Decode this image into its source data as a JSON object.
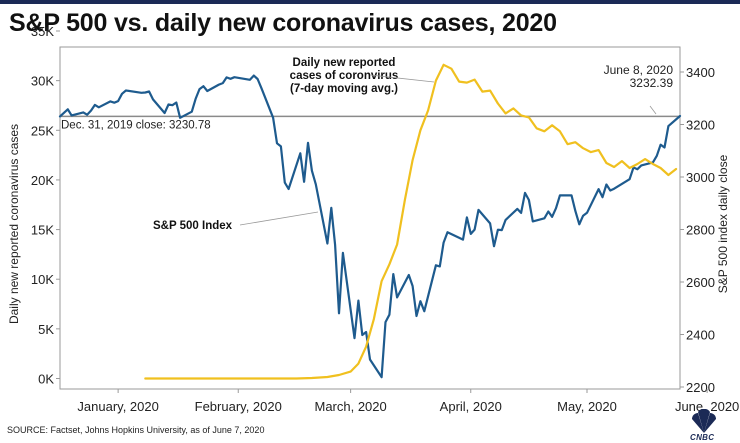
{
  "title": "S&P 500 vs. daily new coronavirus cases, 2020",
  "source": "SOURCE: Factset, Johns Hopkins University, as of June 7, 2020",
  "logo": {
    "text": "CNBC"
  },
  "colors": {
    "sp500": "#1e5b8e",
    "cases": "#f0c01f",
    "reference": "#8a8a8a",
    "axis": "#555555"
  },
  "chart_data": {
    "type": "line",
    "ylabel_left": "Daily new reported coronavirus cases",
    "ylabel_right": "S&P 500 index daily close",
    "ylim_left": [
      0,
      35000
    ],
    "ylim_right": [
      2200,
      3500
    ],
    "yticks_left": [
      {
        "value": 0,
        "label": "0K"
      },
      {
        "value": 5000,
        "label": "5K"
      },
      {
        "value": 10000,
        "label": "10K"
      },
      {
        "value": 15000,
        "label": "15K"
      },
      {
        "value": 20000,
        "label": "20K"
      },
      {
        "value": 25000,
        "label": "25K"
      },
      {
        "value": 30000,
        "label": "30K"
      },
      {
        "value": 35000,
        "label": "35K"
      }
    ],
    "yticks_right": [
      {
        "value": 2200,
        "label": "2200"
      },
      {
        "value": 2400,
        "label": "2400"
      },
      {
        "value": 2600,
        "label": "2600"
      },
      {
        "value": 2800,
        "label": "2800"
      },
      {
        "value": 3000,
        "label": "3000"
      },
      {
        "value": 3200,
        "label": "3200"
      },
      {
        "value": 3400,
        "label": "3400"
      }
    ],
    "x_axis_type": "date",
    "xlim": [
      "2019-12-31",
      "2020-06-08"
    ],
    "xticks": [
      {
        "date": "2020-01-15",
        "label": "January, 2020"
      },
      {
        "date": "2020-02-15",
        "label": "February, 2020"
      },
      {
        "date": "2020-03-15",
        "label": "March, 2020"
      },
      {
        "date": "2020-04-15",
        "label": "April, 2020"
      },
      {
        "date": "2020-05-15",
        "label": "May, 2020"
      },
      {
        "date": "2020-06-15",
        "label": "June, 2020"
      }
    ],
    "reference_line": {
      "axis": "right",
      "value": 3230.78,
      "label": "Dec. 31, 2019 close: 3230.78"
    },
    "annotations": [
      {
        "id": "cases",
        "lines": [
          "Daily new reported",
          "cases of coronvirus",
          "(7-day moving avg.)"
        ]
      },
      {
        "id": "sp500",
        "lines": [
          "S&P 500 Index"
        ]
      },
      {
        "id": "last-close",
        "lines": [
          "June 8, 2020",
          "3232.39"
        ]
      }
    ],
    "series": [
      {
        "name": "S&P 500 Index",
        "axis": "right",
        "color": "#1e5b8e",
        "x": [
          "2019-12-31",
          "2020-01-02",
          "2020-01-03",
          "2020-01-06",
          "2020-01-07",
          "2020-01-08",
          "2020-01-09",
          "2020-01-10",
          "2020-01-13",
          "2020-01-14",
          "2020-01-15",
          "2020-01-16",
          "2020-01-17",
          "2020-01-21",
          "2020-01-22",
          "2020-01-23",
          "2020-01-24",
          "2020-01-27",
          "2020-01-28",
          "2020-01-29",
          "2020-01-30",
          "2020-01-31",
          "2020-02-03",
          "2020-02-04",
          "2020-02-05",
          "2020-02-06",
          "2020-02-07",
          "2020-02-10",
          "2020-02-11",
          "2020-02-12",
          "2020-02-13",
          "2020-02-14",
          "2020-02-18",
          "2020-02-19",
          "2020-02-20",
          "2020-02-21",
          "2020-02-24",
          "2020-02-25",
          "2020-02-26",
          "2020-02-27",
          "2020-02-28",
          "2020-03-02",
          "2020-03-03",
          "2020-03-04",
          "2020-03-05",
          "2020-03-06",
          "2020-03-09",
          "2020-03-10",
          "2020-03-11",
          "2020-03-12",
          "2020-03-13",
          "2020-03-16",
          "2020-03-17",
          "2020-03-18",
          "2020-03-19",
          "2020-03-20",
          "2020-03-23",
          "2020-03-24",
          "2020-03-25",
          "2020-03-26",
          "2020-03-27",
          "2020-03-30",
          "2020-03-31",
          "2020-04-01",
          "2020-04-02",
          "2020-04-03",
          "2020-04-06",
          "2020-04-07",
          "2020-04-08",
          "2020-04-09",
          "2020-04-13",
          "2020-04-14",
          "2020-04-15",
          "2020-04-16",
          "2020-04-17",
          "2020-04-20",
          "2020-04-21",
          "2020-04-22",
          "2020-04-23",
          "2020-04-24",
          "2020-04-27",
          "2020-04-28",
          "2020-04-29",
          "2020-04-30",
          "2020-05-01",
          "2020-05-04",
          "2020-05-05",
          "2020-05-06",
          "2020-05-07",
          "2020-05-08",
          "2020-05-11",
          "2020-05-12",
          "2020-05-13",
          "2020-05-14",
          "2020-05-15",
          "2020-05-18",
          "2020-05-19",
          "2020-05-20",
          "2020-05-21",
          "2020-05-22",
          "2020-05-26",
          "2020-05-27",
          "2020-05-28",
          "2020-05-29",
          "2020-06-01",
          "2020-06-02",
          "2020-06-03",
          "2020-06-04",
          "2020-06-05",
          "2020-06-08"
        ],
        "values": [
          3230.78,
          3257.85,
          3234.85,
          3246.28,
          3237.18,
          3253.05,
          3274.7,
          3265.35,
          3288.13,
          3283.15,
          3289.29,
          3316.81,
          3329.62,
          3320.79,
          3321.75,
          3325.54,
          3295.47,
          3243.63,
          3276.24,
          3273.4,
          3283.66,
          3225.52,
          3248.92,
          3297.59,
          3334.69,
          3345.78,
          3327.71,
          3352.09,
          3357.75,
          3379.45,
          3373.94,
          3380.16,
          3370.29,
          3386.15,
          3373.23,
          3337.75,
          3225.89,
          3128.21,
          3116.39,
          2978.76,
          2954.22,
          3090.23,
          2981.76,
          3130.12,
          3023.94,
          2972.37,
          2746.56,
          2882.23,
          2741.38,
          2480.64,
          2711.02,
          2386.13,
          2529.19,
          2398.1,
          2409.39,
          2304.92,
          2237.4,
          2447.33,
          2475.56,
          2630.07,
          2541.47,
          2626.65,
          2584.59,
          2470.5,
          2526.9,
          2488.65,
          2663.68,
          2659.41,
          2749.98,
          2789.82,
          2761.63,
          2846.06,
          2783.36,
          2799.55,
          2874.56,
          2823.16,
          2736.56,
          2799.31,
          2797.8,
          2836.74,
          2878.48,
          2863.39,
          2939.51,
          2912.43,
          2830.71,
          2842.74,
          2868.44,
          2848.42,
          2881.19,
          2929.8,
          2930.32,
          2870.12,
          2820.0,
          2852.5,
          2863.7,
          2953.91,
          2922.94,
          2971.61,
          2948.51,
          2955.45,
          2991.77,
          3036.13,
          3029.73,
          3044.31,
          3055.73,
          3080.82,
          3122.87,
          3112.35,
          3193.93,
          3232.39
        ]
      },
      {
        "name": "Daily new reported cases of coronavirus (7-day moving avg.)",
        "axis": "left",
        "color": "#f0c01f",
        "x": [
          "2020-01-22",
          "2020-01-31",
          "2020-02-10",
          "2020-02-20",
          "2020-03-01",
          "2020-03-05",
          "2020-03-09",
          "2020-03-12",
          "2020-03-15",
          "2020-03-17",
          "2020-03-19",
          "2020-03-21",
          "2020-03-23",
          "2020-03-25",
          "2020-03-27",
          "2020-03-29",
          "2020-03-31",
          "2020-04-02",
          "2020-04-04",
          "2020-04-06",
          "2020-04-08",
          "2020-04-10",
          "2020-04-12",
          "2020-04-14",
          "2020-04-16",
          "2020-04-18",
          "2020-04-20",
          "2020-04-22",
          "2020-04-24",
          "2020-04-26",
          "2020-04-28",
          "2020-04-30",
          "2020-05-02",
          "2020-05-04",
          "2020-05-06",
          "2020-05-08",
          "2020-05-10",
          "2020-05-12",
          "2020-05-14",
          "2020-05-16",
          "2020-05-18",
          "2020-05-20",
          "2020-05-22",
          "2020-05-24",
          "2020-05-26",
          "2020-05-28",
          "2020-05-30",
          "2020-06-01",
          "2020-06-03",
          "2020-06-05",
          "2020-06-07"
        ],
        "values": [
          0,
          0,
          0,
          0,
          0,
          50,
          150,
          350,
          700,
          1500,
          3200,
          6000,
          9800,
          11500,
          13500,
          18000,
          22000,
          25000,
          27000,
          30000,
          31600,
          31200,
          29900,
          29800,
          30100,
          28900,
          29000,
          27700,
          26700,
          27200,
          26500,
          26300,
          25200,
          24900,
          25500,
          24900,
          23600,
          23800,
          23200,
          22800,
          23000,
          21700,
          21300,
          21900,
          21200,
          21600,
          22100,
          21600,
          21200,
          20500,
          21100
        ]
      }
    ]
  }
}
